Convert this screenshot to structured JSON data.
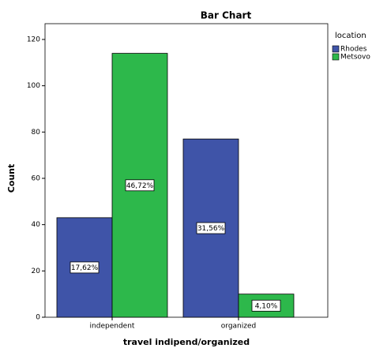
{
  "chart_data": {
    "type": "bar",
    "title": "Bar Chart",
    "x_label": "travel indipend/organized",
    "y_label": "Count",
    "legend_title": "location",
    "legend_position": "right",
    "categories": [
      "independent",
      "organized"
    ],
    "series": [
      {
        "name": "Rhodes",
        "color": "#3f54a8",
        "values": [
          43,
          77
        ],
        "labels": [
          "17,62%",
          "31,56%"
        ]
      },
      {
        "name": "Metsovo",
        "color": "#2db84b",
        "values": [
          114,
          10
        ],
        "labels": [
          "46,72%",
          "4,10%"
        ]
      }
    ],
    "ylim": [
      0,
      120
    ],
    "yticks": [
      0,
      20,
      40,
      60,
      80,
      100,
      120
    ],
    "grid": false
  }
}
